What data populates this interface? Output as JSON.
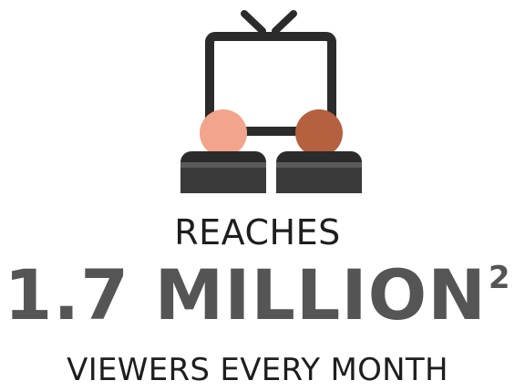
{
  "headline": {
    "kicker": "REACHES",
    "figure": "1.7 MILLION",
    "footnote_marker": "2",
    "subline": "VIEWERS EVERY MONTH"
  },
  "colors": {
    "text": "#1e1e1e",
    "figure_text": "#555555",
    "tv_frame": "#2b2b2b",
    "seat_dark": "#3a3a3a",
    "seat_mid": "#5a5a5a",
    "viewer_left_head": "#f2a58c",
    "viewer_right_head": "#b5603f"
  },
  "icons": [
    "tv-icon",
    "viewer-left-icon",
    "viewer-right-icon"
  ]
}
